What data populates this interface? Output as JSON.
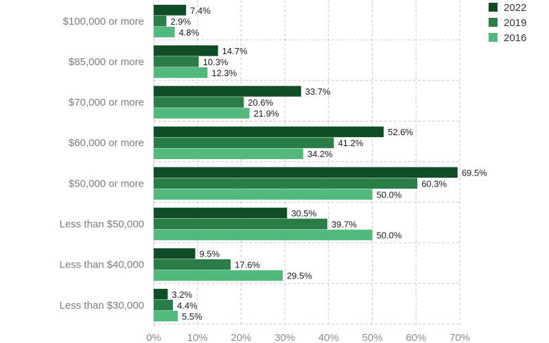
{
  "chart_data": {
    "type": "bar",
    "orientation": "horizontal",
    "categories": [
      "$100,000 or more",
      "$85,000 or more",
      "$70,000 or more",
      "$60,000 or more",
      "$50,000 or more",
      "Less than $50,000",
      "Less than $40,000",
      "Less than $30,000"
    ],
    "series": [
      {
        "name": "2022",
        "color": "#0e4d25",
        "values": [
          7.4,
          14.7,
          33.7,
          52.6,
          69.5,
          30.5,
          9.5,
          3.2
        ],
        "labels": [
          "7.4%",
          "14.7%",
          "33.7%",
          "52.6%",
          "69.5%",
          "30.5%",
          "9.5%",
          "3.2%"
        ]
      },
      {
        "name": "2019",
        "color": "#2a7d47",
        "values": [
          2.9,
          10.3,
          20.6,
          41.2,
          60.3,
          39.7,
          17.6,
          4.4
        ],
        "labels": [
          "2.9%",
          "10.3%",
          "20.6%",
          "41.2%",
          "60.3%",
          "39.7%",
          "17.6%",
          "4.4%"
        ]
      },
      {
        "name": "2016",
        "color": "#52b97d",
        "values": [
          4.8,
          12.3,
          21.9,
          34.2,
          50.0,
          50.0,
          29.5,
          5.5
        ],
        "labels": [
          "4.8%",
          "12.3%",
          "21.9%",
          "34.2%",
          "50.0%",
          "50.0%",
          "29.5%",
          "5.5%"
        ]
      }
    ],
    "x_ticks": [
      0,
      10,
      20,
      30,
      40,
      50,
      60,
      70
    ],
    "x_tick_labels": [
      "0%",
      "10%",
      "20%",
      "30%",
      "40%",
      "50%",
      "60%",
      "70%"
    ],
    "xlim": [
      0,
      70
    ],
    "grid": true,
    "legend_position": "top-right"
  }
}
